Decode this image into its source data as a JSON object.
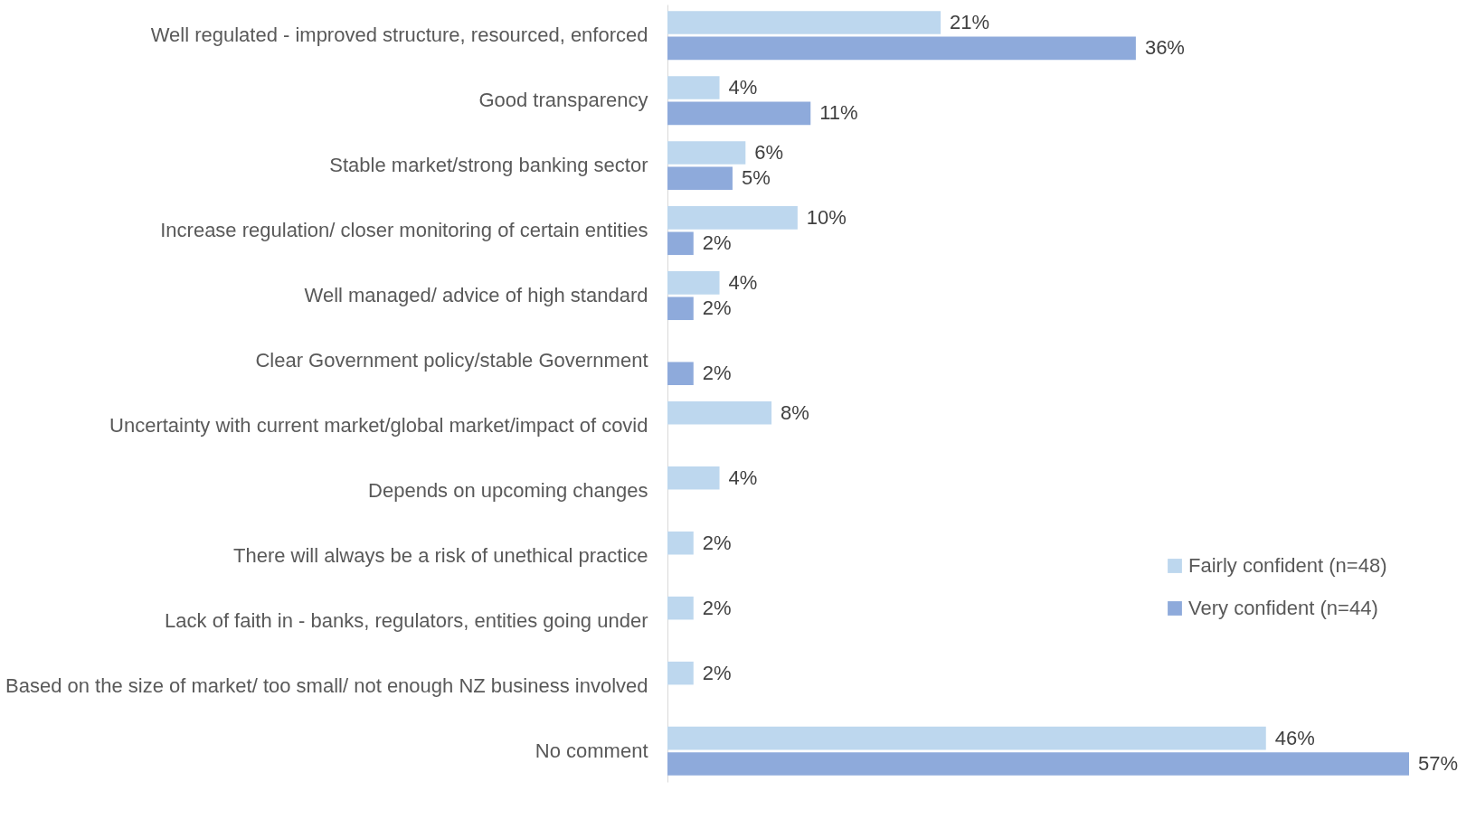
{
  "chart_data": {
    "type": "bar",
    "orientation": "horizontal",
    "legend": "right",
    "grid": false,
    "tick_labels": "y",
    "categories": [
      "Well regulated - improved structure, resourced, enforced",
      "Good transparency",
      "Stable market/strong banking sector",
      "Increase regulation/ closer monitoring of certain entities",
      "Well managed/ advice of high standard",
      "Clear Government policy/stable Government",
      "Uncertainty with current market/global market/impact of covid",
      "Depends on upcoming changes",
      "There will always be a risk of unethical practice",
      "Lack of faith in - banks, regulators, entities going under",
      "Based on the size of market/ too small/ not enough NZ business involved",
      "No comment"
    ],
    "series": [
      {
        "name": "Fairly confident (n=48)",
        "color": "#bdd7ee",
        "values": [
          21,
          4,
          6,
          10,
          4,
          null,
          8,
          4,
          2,
          2,
          2,
          46
        ],
        "value_labels": [
          "21%",
          "4%",
          "6%",
          "10%",
          "4%",
          null,
          "8%",
          "4%",
          "2%",
          "2%",
          "2%",
          "46%"
        ]
      },
      {
        "name": "Very confident (n=44)",
        "color": "#8eaadb",
        "values": [
          36,
          11,
          5,
          2,
          2,
          2,
          null,
          null,
          null,
          null,
          null,
          57
        ],
        "value_labels": [
          "36%",
          "11%",
          "5%",
          "2%",
          "2%",
          "2%",
          null,
          null,
          null,
          null,
          null,
          "57%"
        ]
      }
    ]
  }
}
